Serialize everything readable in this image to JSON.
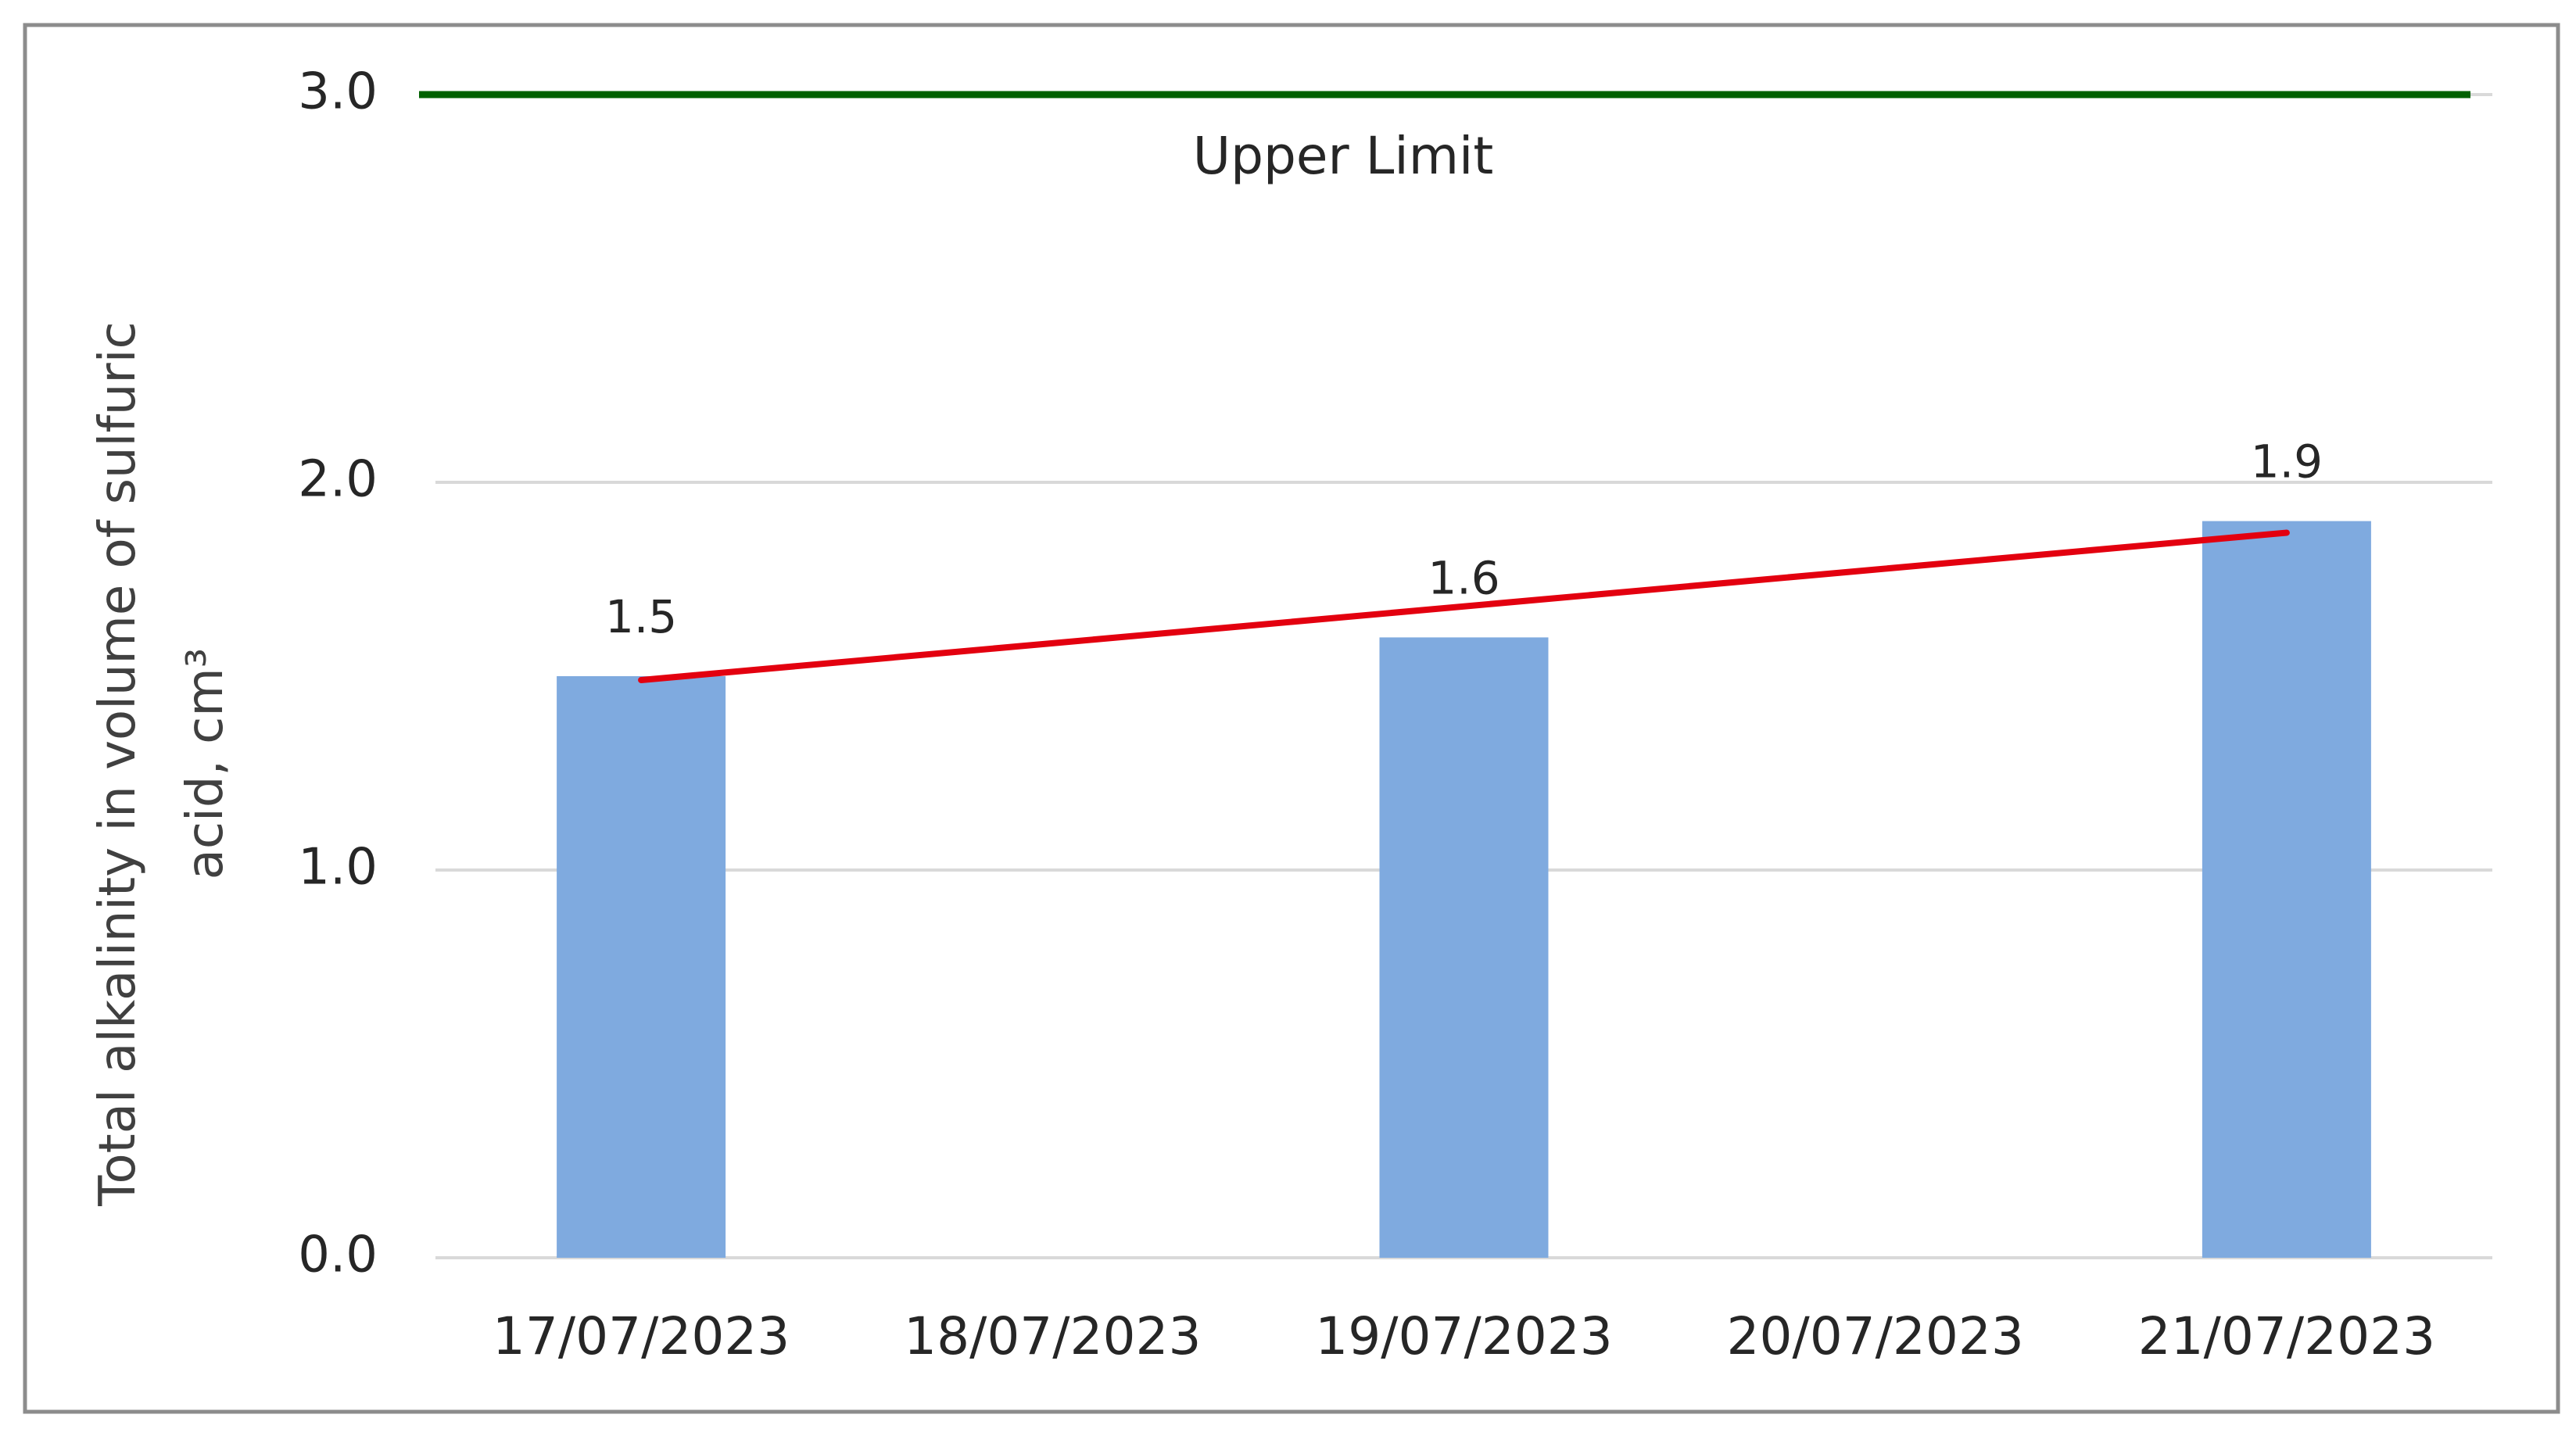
{
  "chart_data": {
    "type": "bar",
    "y_label": "Total alkalinity in volume of sulfuric acid, cm³",
    "categories": [
      "17/07/2023",
      "18/07/2023",
      "19/07/2023",
      "20/07/2023",
      "21/07/2023"
    ],
    "values": [
      1.5,
      null,
      1.6,
      null,
      1.9
    ],
    "color": "#7faadf",
    "trendline": {
      "color": "#e3000f",
      "values": [
        1.49,
        1.585,
        1.68,
        1.775,
        1.87
      ]
    },
    "reference_lines": [
      {
        "value": 3.0,
        "label": "Upper Limit",
        "color": "#006100"
      }
    ],
    "ylim": [
      0,
      3
    ],
    "yticks": [
      {
        "value": 0,
        "label": "0.0"
      },
      {
        "value": 1,
        "label": "1.0"
      },
      {
        "value": 2,
        "label": "2.0"
      },
      {
        "value": 3,
        "label": "3.0"
      }
    ],
    "grid": true
  }
}
